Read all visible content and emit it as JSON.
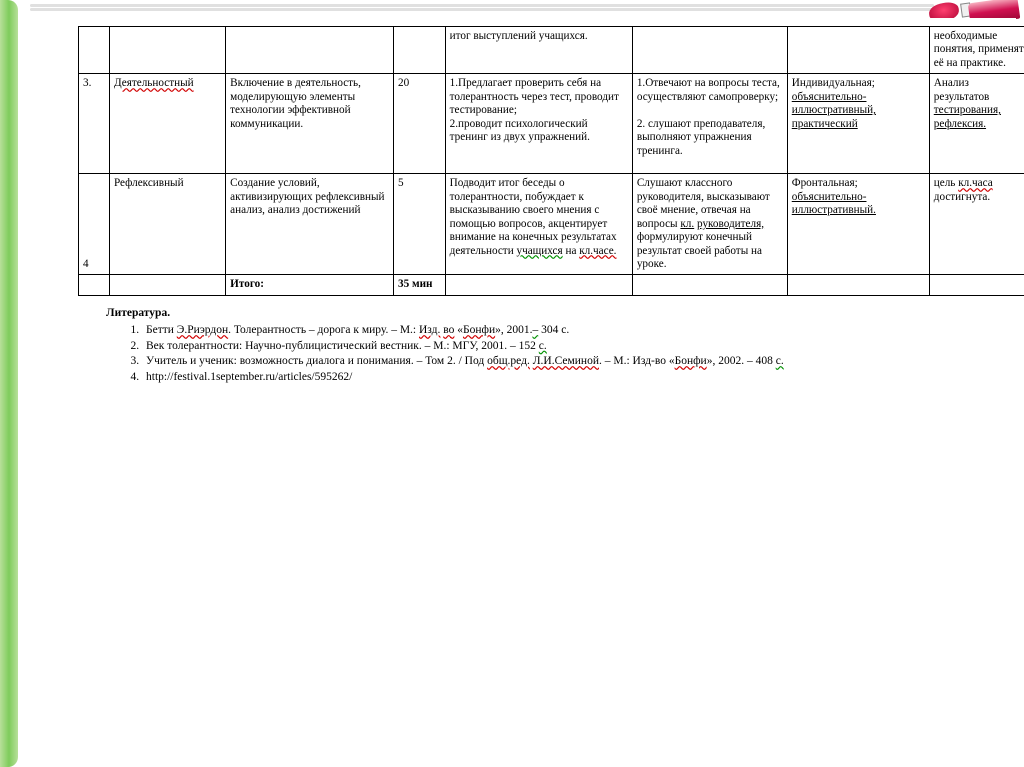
{
  "table": {
    "rows": [
      {
        "num": "",
        "stage": "",
        "task": "",
        "time": "",
        "teacher": "итог выступлений учащихся.",
        "student": "",
        "form": "",
        "result_parts": [
          "необходимые понятия, применять её на практике."
        ]
      },
      {
        "num": "3.",
        "stage": "Деятельностный",
        "task": "Включение в деятельность, моделирующую элементы технологии эффективной коммуникации.",
        "time": "20",
        "teacher_parts": [
          "1.Предлагает проверить себя на толерантность через тест, проводит тестирование;",
          "2.проводит психологический тренинг из двух упражнений."
        ],
        "student_parts": [
          "1.Отвечают на вопросы теста, осуществляют самопроверку;",
          "2. слушают преподавателя, выполняют упражнения тренинга."
        ],
        "form_p1": "Индивидуальная;",
        "form_p2a": "объяснительно-",
        "form_p2b": "иллюстративный,",
        "form_p3": "практический",
        "result_word1": "Анализ",
        "result_word2": "результатов",
        "result_word3a": "тестирования,",
        "result_word3b": "рефлексия."
      },
      {
        "num": "4",
        "stage": "Рефлексивный",
        "task": "Создание условий, активизирующих рефлексивный анализ, анализ достижений",
        "time": "5",
        "teacher_a": "Подводит итог беседы о толерантности, побуждает к высказыванию своего мнения с помощью вопросов, акцентирует внимание на конечных результатах деятельности ",
        "teacher_b": "учащихся",
        "teacher_c": "на ",
        "teacher_d": "кл.часе.",
        "student_a": "Слушают классного руководителя, высказывают своё мнение, отвечая на вопросы ",
        "student_b": "кл.",
        "student_c": "руководителя,",
        "student_d": " формулируют конечный результат своей работы на уроке.",
        "form_p1": "Фронтальная;",
        "form_p2a": "объяснительно-",
        "form_p2b": "иллюстративный.",
        "result_a": "цель ",
        "result_b": "кл.часа",
        "result_c": " достигнута."
      }
    ],
    "total_label": "Итого:",
    "total_time": "35 мин"
  },
  "literature": {
    "title": "Литература.",
    "items": [
      {
        "pre": "Бетти ",
        "u1": "Э.Риэрдон",
        "mid": ". Толерантность – дорога к миру. – М.: ",
        "u2": "Изд.",
        "mid2": " ",
        "u3": "во",
        "mid3": " «",
        "u4": "Бонфи",
        "mid4": "», 2001.",
        "u5": "–",
        "end": " 304 с."
      },
      {
        "pre": "Век толерантности: Научно-публицистический вестник. – М.: МГУ, 2001. – 152 ",
        "u1": "с.",
        "end": ""
      },
      {
        "pre": "Учитель и ученик: возможность диалога и понимания. – Том 2. / Под ",
        "u1": "общ.ред.",
        "mid": " ",
        "u2a": "Л.И.Семиной",
        "mid2": ". – М.: Изд-во «",
        "u3": "Бонфи",
        "mid3": "», 2002. – 408 ",
        "u4": "с.",
        "end": ""
      },
      {
        "pre": "http://festival.1september.ru/articles/595262/"
      }
    ]
  },
  "colors": {
    "wavy_red": "#d00000",
    "wavy_green": "#009000",
    "border": "#000000",
    "green_bar": "#7fcc5c",
    "paint": "#d01050"
  },
  "fonts": {
    "body_pt": 12,
    "table_pt": 11
  }
}
